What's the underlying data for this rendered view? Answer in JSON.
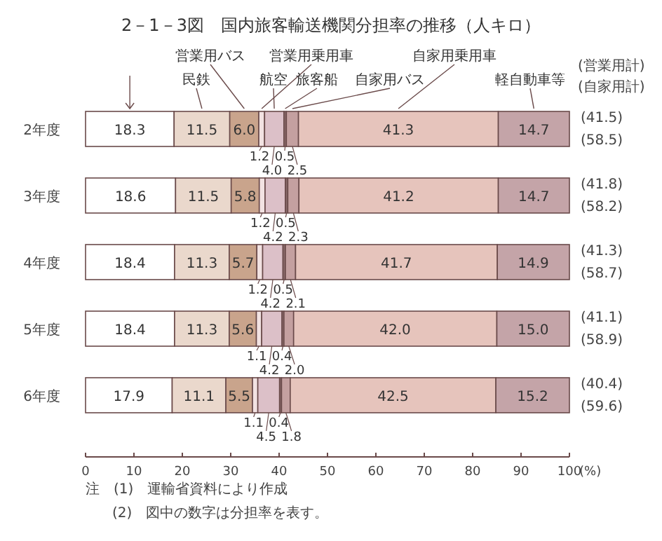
{
  "chart_data": {
    "type": "bar",
    "orientation": "horizontal",
    "stacked": true,
    "title": "2－1－3図　国内旅客輸送機関分担率の推移（人キロ）",
    "xlabel": "(%)",
    "categories": [
      "2年度",
      "3年度",
      "4年度",
      "5年度",
      "6年度"
    ],
    "xlim": [
      0,
      100
    ],
    "xticks": [
      0,
      10,
      20,
      30,
      40,
      50,
      60,
      70,
      80,
      90,
      100
    ],
    "legend": "top",
    "series": [
      {
        "color": "#ffffff",
        "values": [
          18.3,
          18.6,
          18.4,
          18.4,
          17.9
        ],
        "value_labels": [
          "18.3",
          "18.6",
          "18.4",
          "18.4",
          "17.9"
        ]
      },
      {
        "name": "民鉄",
        "color": "#ead8cc",
        "values": [
          11.5,
          11.5,
          11.3,
          11.3,
          11.1
        ],
        "value_labels": [
          "11.5",
          "11.5",
          "11.3",
          "11.3",
          "11.1"
        ]
      },
      {
        "name": "営業用バス",
        "color": "#c9a48c",
        "values": [
          6.0,
          5.8,
          5.7,
          5.6,
          5.5
        ],
        "value_labels": [
          "6.0",
          "5.8",
          "5.7",
          "5.6",
          "5.5"
        ]
      },
      {
        "name": "営業用乗用車",
        "color": "#f2e2e2",
        "values": [
          1.2,
          1.2,
          1.2,
          1.1,
          1.1
        ],
        "value_labels": [
          "1.2",
          "1.2",
          "1.2",
          "1.1",
          "1.1"
        ]
      },
      {
        "name": "航空",
        "color": "#dcc0c8",
        "values": [
          4.0,
          4.2,
          4.2,
          4.2,
          4.5
        ],
        "value_labels": [
          "4.0",
          "4.2",
          "4.2",
          "4.2",
          "4.5"
        ]
      },
      {
        "name": "旅客船",
        "color": "#8c6c6c",
        "values": [
          0.5,
          0.5,
          0.5,
          0.4,
          0.4
        ],
        "value_labels": [
          "0.5",
          "0.5",
          "0.5",
          "0.4",
          "0.4"
        ]
      },
      {
        "name": "自家用バス",
        "color": "#c4a0a0",
        "values": [
          2.5,
          2.3,
          2.1,
          2.0,
          1.8
        ],
        "value_labels": [
          "2.5",
          "2.3",
          "2.1",
          "2.0",
          "1.8"
        ]
      },
      {
        "name": "自家用乗用車",
        "color": "#e6c4bc",
        "values": [
          41.3,
          41.2,
          41.7,
          42.0,
          42.5
        ],
        "value_labels": [
          "41.3",
          "41.2",
          "41.7",
          "42.0",
          "42.5"
        ]
      },
      {
        "name": "軽自動車等",
        "color": "#c4a4a8",
        "values": [
          14.7,
          14.7,
          14.9,
          15.0,
          15.2
        ],
        "value_labels": [
          "14.7",
          "14.7",
          "14.9",
          "15.0",
          "15.2"
        ]
      }
    ],
    "annotations": [
      "(営業用計)",
      "(自家用計)",
      "(41.5)",
      "(58.5)",
      "(41.8)",
      "(58.2)",
      "(41.3)",
      "(58.7)",
      "(41.1)",
      "(58.9)",
      "(40.4)",
      "(59.6)",
      "注　(1)　運輸省資料により作成",
      "(2)　図中の数字は分担率を表す。"
    ]
  }
}
